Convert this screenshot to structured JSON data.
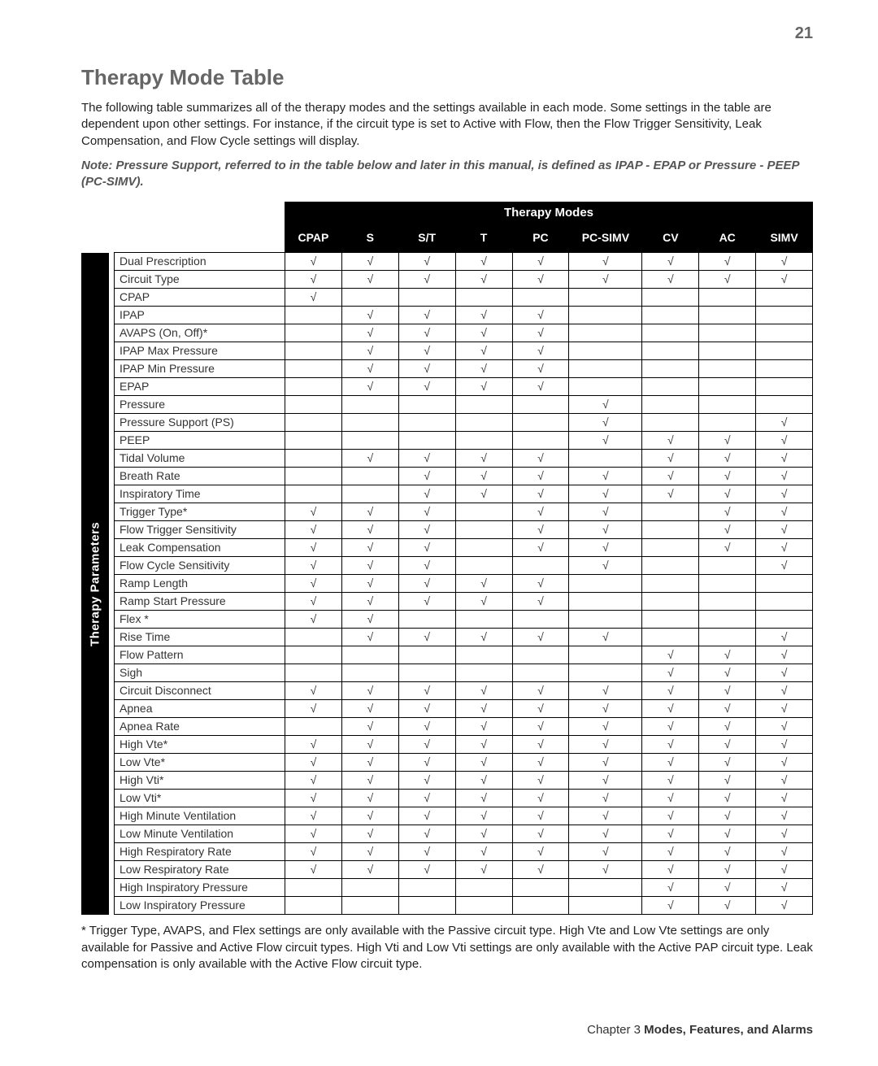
{
  "page_number": "21",
  "title": "Therapy Mode Table",
  "intro": "The following table summarizes all of the therapy modes and the settings available in each mode. Some settings in the table are dependent upon other settings. For instance, if the circuit type is set to Active with Flow, then the Flow Trigger Sensitivity, Leak Compensation, and Flow Cycle settings will display.",
  "note": "Note: Pressure Support, referred to in the table below and later in this manual, is defined as  IPAP - EPAP or Pressure - PEEP (PC-SIMV).",
  "span_header": "Therapy Modes",
  "vertical_label": "Therapy Parameters",
  "check_glyph": "√",
  "modes": [
    "CPAP",
    "S",
    "S/T",
    "T",
    "PC",
    "PC-SIMV",
    "CV",
    "AC",
    "SIMV"
  ],
  "rows": [
    {
      "label": "Dual Prescription",
      "v": [
        1,
        1,
        1,
        1,
        1,
        1,
        1,
        1,
        1
      ]
    },
    {
      "label": "Circuit Type",
      "v": [
        1,
        1,
        1,
        1,
        1,
        1,
        1,
        1,
        1
      ]
    },
    {
      "label": "CPAP",
      "v": [
        1,
        0,
        0,
        0,
        0,
        0,
        0,
        0,
        0
      ]
    },
    {
      "label": "IPAP",
      "v": [
        0,
        1,
        1,
        1,
        1,
        0,
        0,
        0,
        0
      ]
    },
    {
      "label": "AVAPS (On, Off)*",
      "v": [
        0,
        1,
        1,
        1,
        1,
        0,
        0,
        0,
        0
      ]
    },
    {
      "label": "IPAP Max Pressure",
      "v": [
        0,
        1,
        1,
        1,
        1,
        0,
        0,
        0,
        0
      ]
    },
    {
      "label": "IPAP Min Pressure",
      "v": [
        0,
        1,
        1,
        1,
        1,
        0,
        0,
        0,
        0
      ]
    },
    {
      "label": "EPAP",
      "v": [
        0,
        1,
        1,
        1,
        1,
        0,
        0,
        0,
        0
      ]
    },
    {
      "label": "Pressure",
      "v": [
        0,
        0,
        0,
        0,
        0,
        1,
        0,
        0,
        0
      ]
    },
    {
      "label": "Pressure Support (PS)",
      "v": [
        0,
        0,
        0,
        0,
        0,
        1,
        0,
        0,
        1
      ]
    },
    {
      "label": "PEEP",
      "v": [
        0,
        0,
        0,
        0,
        0,
        1,
        1,
        1,
        1
      ]
    },
    {
      "label": "Tidal Volume",
      "v": [
        0,
        1,
        1,
        1,
        1,
        0,
        1,
        1,
        1
      ]
    },
    {
      "label": "Breath Rate",
      "v": [
        0,
        0,
        1,
        1,
        1,
        1,
        1,
        1,
        1
      ]
    },
    {
      "label": "Inspiratory Time",
      "v": [
        0,
        0,
        1,
        1,
        1,
        1,
        1,
        1,
        1
      ]
    },
    {
      "label": "Trigger Type*",
      "v": [
        1,
        1,
        1,
        0,
        1,
        1,
        0,
        1,
        1
      ]
    },
    {
      "label": "Flow Trigger Sensitivity",
      "v": [
        1,
        1,
        1,
        0,
        1,
        1,
        0,
        1,
        1
      ]
    },
    {
      "label": "Leak Compensation",
      "v": [
        1,
        1,
        1,
        0,
        1,
        1,
        0,
        1,
        1
      ]
    },
    {
      "label": "Flow Cycle Sensitivity",
      "v": [
        1,
        1,
        1,
        0,
        0,
        1,
        0,
        0,
        1
      ]
    },
    {
      "label": "Ramp Length",
      "v": [
        1,
        1,
        1,
        1,
        1,
        0,
        0,
        0,
        0
      ]
    },
    {
      "label": "Ramp Start Pressure",
      "v": [
        1,
        1,
        1,
        1,
        1,
        0,
        0,
        0,
        0
      ]
    },
    {
      "label": "Flex *",
      "v": [
        1,
        1,
        0,
        0,
        0,
        0,
        0,
        0,
        0
      ]
    },
    {
      "label": "Rise Time",
      "v": [
        0,
        1,
        1,
        1,
        1,
        1,
        0,
        0,
        1
      ]
    },
    {
      "label": "Flow Pattern",
      "v": [
        0,
        0,
        0,
        0,
        0,
        0,
        1,
        1,
        1
      ]
    },
    {
      "label": "Sigh",
      "v": [
        0,
        0,
        0,
        0,
        0,
        0,
        1,
        1,
        1
      ]
    },
    {
      "label": "Circuit Disconnect",
      "v": [
        1,
        1,
        1,
        1,
        1,
        1,
        1,
        1,
        1
      ]
    },
    {
      "label": "Apnea",
      "v": [
        1,
        1,
        1,
        1,
        1,
        1,
        1,
        1,
        1
      ]
    },
    {
      "label": "Apnea Rate",
      "v": [
        0,
        1,
        1,
        1,
        1,
        1,
        1,
        1,
        1
      ]
    },
    {
      "label": "High Vte*",
      "v": [
        1,
        1,
        1,
        1,
        1,
        1,
        1,
        1,
        1
      ]
    },
    {
      "label": "Low Vte*",
      "v": [
        1,
        1,
        1,
        1,
        1,
        1,
        1,
        1,
        1
      ]
    },
    {
      "label": "High Vti*",
      "v": [
        1,
        1,
        1,
        1,
        1,
        1,
        1,
        1,
        1
      ]
    },
    {
      "label": "Low Vti*",
      "v": [
        1,
        1,
        1,
        1,
        1,
        1,
        1,
        1,
        1
      ]
    },
    {
      "label": "High Minute Ventilation",
      "v": [
        1,
        1,
        1,
        1,
        1,
        1,
        1,
        1,
        1
      ]
    },
    {
      "label": "Low Minute Ventilation",
      "v": [
        1,
        1,
        1,
        1,
        1,
        1,
        1,
        1,
        1
      ]
    },
    {
      "label": "High Respiratory Rate",
      "v": [
        1,
        1,
        1,
        1,
        1,
        1,
        1,
        1,
        1
      ]
    },
    {
      "label": "Low Respiratory Rate",
      "v": [
        1,
        1,
        1,
        1,
        1,
        1,
        1,
        1,
        1
      ]
    },
    {
      "label": "High Inspiratory Pressure",
      "v": [
        0,
        0,
        0,
        0,
        0,
        0,
        1,
        1,
        1
      ]
    },
    {
      "label": "Low Inspiratory Pressure",
      "v": [
        0,
        0,
        0,
        0,
        0,
        0,
        1,
        1,
        1
      ]
    }
  ],
  "footnote": "* Trigger Type, AVAPS, and Flex settings are only available with the Passive circuit type. High Vte and Low Vte settings are only available for Passive and Active Flow circuit types. High Vti and Low Vti settings are only available with the Active PAP circuit type. Leak compensation is only available with the Active Flow circuit type.",
  "footer_chapter": "Chapter 3 ",
  "footer_section": "Modes, Features, and Alarms"
}
